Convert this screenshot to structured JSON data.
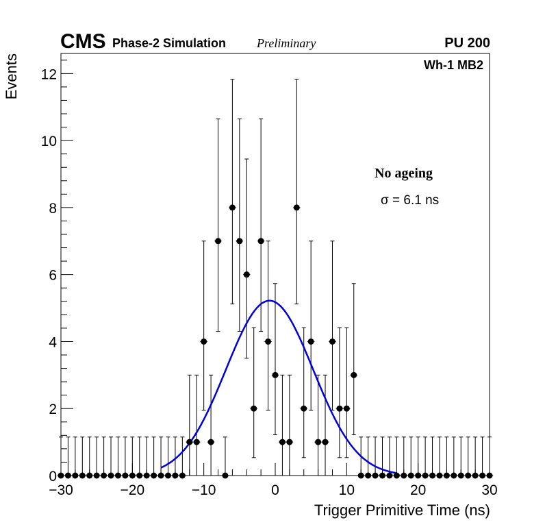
{
  "chart_data": {
    "type": "scatter",
    "header": {
      "experiment": "CMS",
      "simulation": "Phase-2 Simulation",
      "status": "Preliminary",
      "pileup": "PU 200",
      "region": "Wh-1 MB2"
    },
    "annotations": {
      "condition": "No ageing",
      "sigma_label": "σ = 6.1 ns"
    },
    "xlabel": "Trigger Primitive Time (ns)",
    "ylabel": "Events",
    "xlim": [
      -30,
      30
    ],
    "ylim": [
      0,
      12.6
    ],
    "xticks": [
      -30,
      -20,
      -10,
      0,
      10,
      20,
      30
    ],
    "xtick_labels": [
      "−30",
      "−20",
      "−10",
      "0",
      "10",
      "20",
      "30"
    ],
    "yticks": [
      0,
      2,
      4,
      6,
      8,
      10,
      12
    ],
    "ytick_labels": [
      "0",
      "2",
      "4",
      "6",
      "8",
      "10",
      "12"
    ],
    "series": [
      {
        "name": "Trigger primitives",
        "style": "points-with-errors",
        "color": "#000000",
        "x": [
          -30,
          -29,
          -28,
          -27,
          -26,
          -25,
          -24,
          -23,
          -22,
          -21,
          -20,
          -19,
          -18,
          -17,
          -16,
          -15,
          -14,
          -13,
          -12,
          -11,
          -10,
          -9,
          -8,
          -7,
          -6,
          -5,
          -4,
          -3,
          -2,
          -1,
          0,
          1,
          2,
          3,
          4,
          5,
          6,
          7,
          8,
          9,
          10,
          11,
          12,
          13,
          14,
          15,
          16,
          17,
          18,
          19,
          20,
          21,
          22,
          23,
          24,
          25,
          26,
          27,
          28,
          29,
          30
        ],
        "y": [
          0,
          0,
          0,
          0,
          0,
          0,
          0,
          0,
          0,
          0,
          0,
          0,
          0,
          0,
          0,
          0,
          0,
          0,
          1,
          1,
          4,
          1,
          7,
          0,
          8,
          7,
          6,
          2,
          7,
          4,
          3,
          1,
          1,
          8,
          2,
          4,
          1,
          1,
          4,
          2,
          2,
          3,
          0,
          0,
          0,
          0,
          0,
          0,
          0,
          0,
          0,
          0,
          0,
          0,
          0,
          0,
          0,
          0,
          0,
          0,
          0
        ]
      },
      {
        "name": "Gaussian fit",
        "style": "line",
        "color": "#0000dd",
        "amplitude": 5.22,
        "mean": -0.8,
        "sigma": 6.1,
        "range": [
          -16,
          17
        ]
      }
    ]
  }
}
